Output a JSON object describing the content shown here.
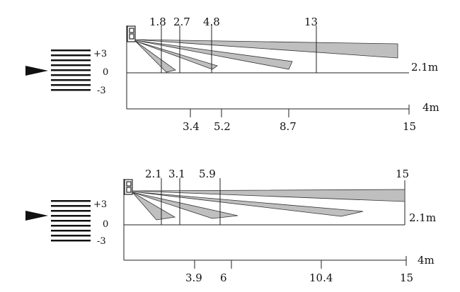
{
  "colors": {
    "line": "#222222",
    "beam_fill": "#bfbfbf",
    "beam_stroke": "#333333",
    "bars": "#111111"
  },
  "icons": {
    "sensor": "pir-sensor-icon",
    "arrow": "pointer-arrow-icon"
  },
  "diagrams": [
    {
      "top_labels": [
        "1.8",
        "2.7",
        "4.8",
        "13"
      ],
      "bottom_labels": [
        "3.4",
        "5.2",
        "8.7",
        "15"
      ],
      "height_label": "2.1m",
      "depth_label": "4m",
      "scale_labels": [
        "+3",
        "0",
        "-3"
      ]
    },
    {
      "top_labels": [
        "2.1",
        "3.1",
        "5.9",
        "15"
      ],
      "bottom_labels": [
        "3.9",
        "6",
        "10.4",
        "15"
      ],
      "height_label": "2.1m",
      "depth_label": "4m",
      "scale_labels": [
        "+3",
        "0",
        "-3"
      ]
    }
  ]
}
